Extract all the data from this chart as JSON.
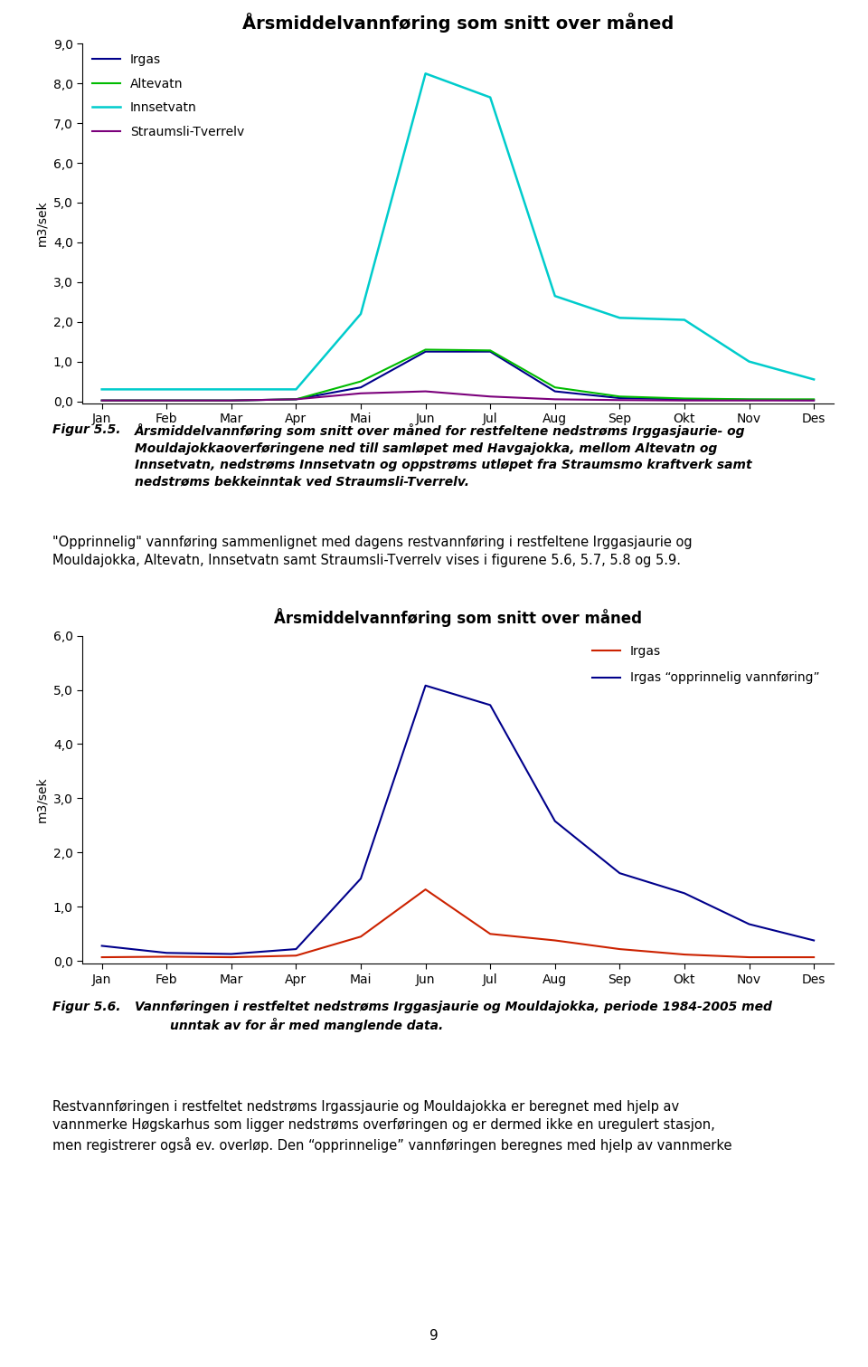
{
  "chart1": {
    "title": "Årsmiddelvannføring som snitt over måned",
    "ylabel": "m3/sek",
    "months": [
      "Jan",
      "Feb",
      "Mar",
      "Apr",
      "Mai",
      "Jun",
      "Jul",
      "Aug",
      "Sep",
      "Okt",
      "Nov",
      "Des"
    ],
    "series": {
      "Irgas": {
        "color": "#00008B",
        "values": [
          0.02,
          0.02,
          0.02,
          0.05,
          0.35,
          1.25,
          1.25,
          0.25,
          0.08,
          0.05,
          0.04,
          0.03
        ]
      },
      "Altevatn": {
        "color": "#00BB00",
        "values": [
          0.02,
          0.02,
          0.02,
          0.05,
          0.5,
          1.3,
          1.28,
          0.35,
          0.12,
          0.07,
          0.05,
          0.05
        ]
      },
      "Innsetvatn": {
        "color": "#00CCCC",
        "values": [
          0.3,
          0.3,
          0.3,
          0.3,
          2.2,
          8.25,
          7.65,
          2.65,
          2.1,
          2.05,
          1.0,
          0.55
        ]
      },
      "Straumsli-Tverrelv": {
        "color": "#7B007B",
        "values": [
          0.02,
          0.02,
          0.02,
          0.05,
          0.2,
          0.25,
          0.12,
          0.05,
          0.03,
          0.02,
          0.02,
          0.02
        ]
      }
    },
    "ylim": [
      0.0,
      9.0
    ],
    "yticks": [
      0.0,
      1.0,
      2.0,
      3.0,
      4.0,
      5.0,
      6.0,
      7.0,
      8.0,
      9.0
    ],
    "ytick_labels": [
      "0,0",
      "1,0",
      "2,0",
      "3,0",
      "4,0",
      "5,0",
      "6,0",
      "7,0",
      "8,0",
      "9,0"
    ]
  },
  "chart2": {
    "title": "Årsmiddelvannføring som snitt over måned",
    "ylabel": "m3/sek",
    "months": [
      "Jan",
      "Feb",
      "Mar",
      "Apr",
      "Mai",
      "Jun",
      "Jul",
      "Aug",
      "Sep",
      "Okt",
      "Nov",
      "Des"
    ],
    "series": {
      "Irgas": {
        "color": "#CC2200",
        "values": [
          0.07,
          0.08,
          0.07,
          0.1,
          0.45,
          1.32,
          0.5,
          0.38,
          0.22,
          0.12,
          0.07,
          0.07
        ]
      },
      "Irgas opprinnelig": {
        "color": "#00008B",
        "values": [
          0.28,
          0.15,
          0.13,
          0.22,
          1.52,
          5.08,
          4.72,
          2.58,
          1.62,
          1.25,
          0.68,
          0.38
        ]
      }
    },
    "ylim": [
      0.0,
      6.0
    ],
    "yticks": [
      0.0,
      1.0,
      2.0,
      3.0,
      4.0,
      5.0,
      6.0
    ],
    "ytick_labels": [
      "0,0",
      "1,0",
      "2,0",
      "3,0",
      "4,0",
      "5,0",
      "6,0"
    ]
  },
  "figur55_label": "Figur 5.5.",
  "figur55_text": "  Årsmiddelvannføring som snitt over måned for restfeltene nedstrøms Irggasjaurie- og Mouldajokkaoverføringene ned till samløpet med Havgajokka, mellom Altevatn og Innsetvatn, nedstrøms Innsetvatn og oppstrøms utløpet fra Straumsmo kraftverk samt nedstrøms bekkeinntak ved Straumsli-Tverrelv.",
  "opprinnelig_text": "„Opprinnelig“ vandføring sammenlignet med dagens restvannføring i restfeltene Irggasjaurie og Mouldajokka, Altevatn, Innsetvatn samt Straumsli-Tverrelv vises i figurene 5.6, 5.7, 5.8 og 5.9.",
  "opprinnelig_text2": "\"Opprinnelig\" vannføring sammenlignet med dagens restvannføring i restfeltene Irggasjaurie og Mouldajokka, Altevatn, Innsetvatn samt Straumsli-Tverrelv vises i figurene 5.6, 5.7, 5.8 og 5.9.",
  "figur56_label": "Figur 5.6.",
  "figur56_text": " Vannføringen i restfeltet nedstrøms Irggasjaurie og Mouldajokka, periode 1984-2005 med unntak av for år med manglende data.",
  "body_text_line1": "Restvannføringen i restfeltet nedstrøms Irgassjaurie og Mouldajokka er beregnet med hjelp av",
  "body_text_line2": "vannmerke Høgskarhus som ligger nedstrøms overføringen og er dermed ikke en uregulert stasjon,",
  "body_text_line3": "men registrerer også ev. overløp. Den “opprinnelige” vannføringen beregnes med hjelp av vannmerke",
  "page_number": "9",
  "background_color": "#ffffff"
}
